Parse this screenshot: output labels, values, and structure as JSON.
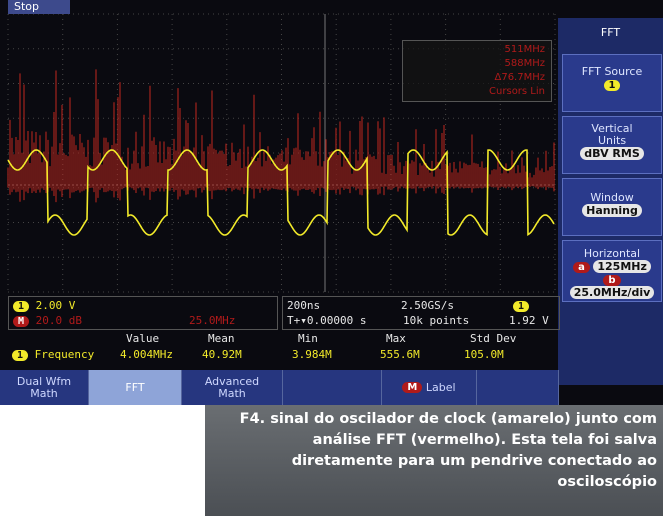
{
  "screen": {
    "status": "Stop",
    "cursors": [
      "511MHz",
      "588MHz",
      "Δ76.7MHz",
      "Cursors Lin"
    ],
    "menu": {
      "title": "FFT",
      "items": [
        {
          "label": "FFT Source",
          "value": "1"
        },
        {
          "label": "Vertical Units",
          "value": "dBV RMS"
        },
        {
          "label": "Window",
          "value": "Hanning"
        },
        {
          "label": "Horizontal",
          "a_marker": "a",
          "a_value": "125MHz",
          "b_marker": "b",
          "b_value": "25.0MHz/div"
        }
      ]
    },
    "readouts": {
      "ch1_badge": "1",
      "ch1_scale": "2.00 V",
      "math_badge": "M",
      "math_scale": "20.0 dB",
      "math_center": "25.0MHz",
      "timebase": "200ns",
      "sample_rate": "2.50GS/s",
      "trigger_badge": "1",
      "trigger_pos": "T+▾0.00000 s",
      "record_length": "10k points",
      "trigger_level": "1.92 V"
    },
    "measurements": {
      "headers": [
        "Value",
        "Mean",
        "Min",
        "Max",
        "Std Dev"
      ],
      "row": {
        "badge": "1",
        "name": "Frequency",
        "cells": [
          "4.004MHz",
          "40.92M",
          "3.984M",
          "555.6M",
          "105.0M"
        ]
      }
    },
    "buttons": [
      "Dual Wfm Math",
      "FFT",
      "Advanced Math"
    ],
    "label_button": {
      "badge": "M",
      "text": "Label"
    }
  },
  "caption": "F4. sinal do oscilador de clock (amarelo) junto com análise FFT (vermelho). Esta tela foi salva diretamente para um pendrive conectado ao osciloscópio"
}
